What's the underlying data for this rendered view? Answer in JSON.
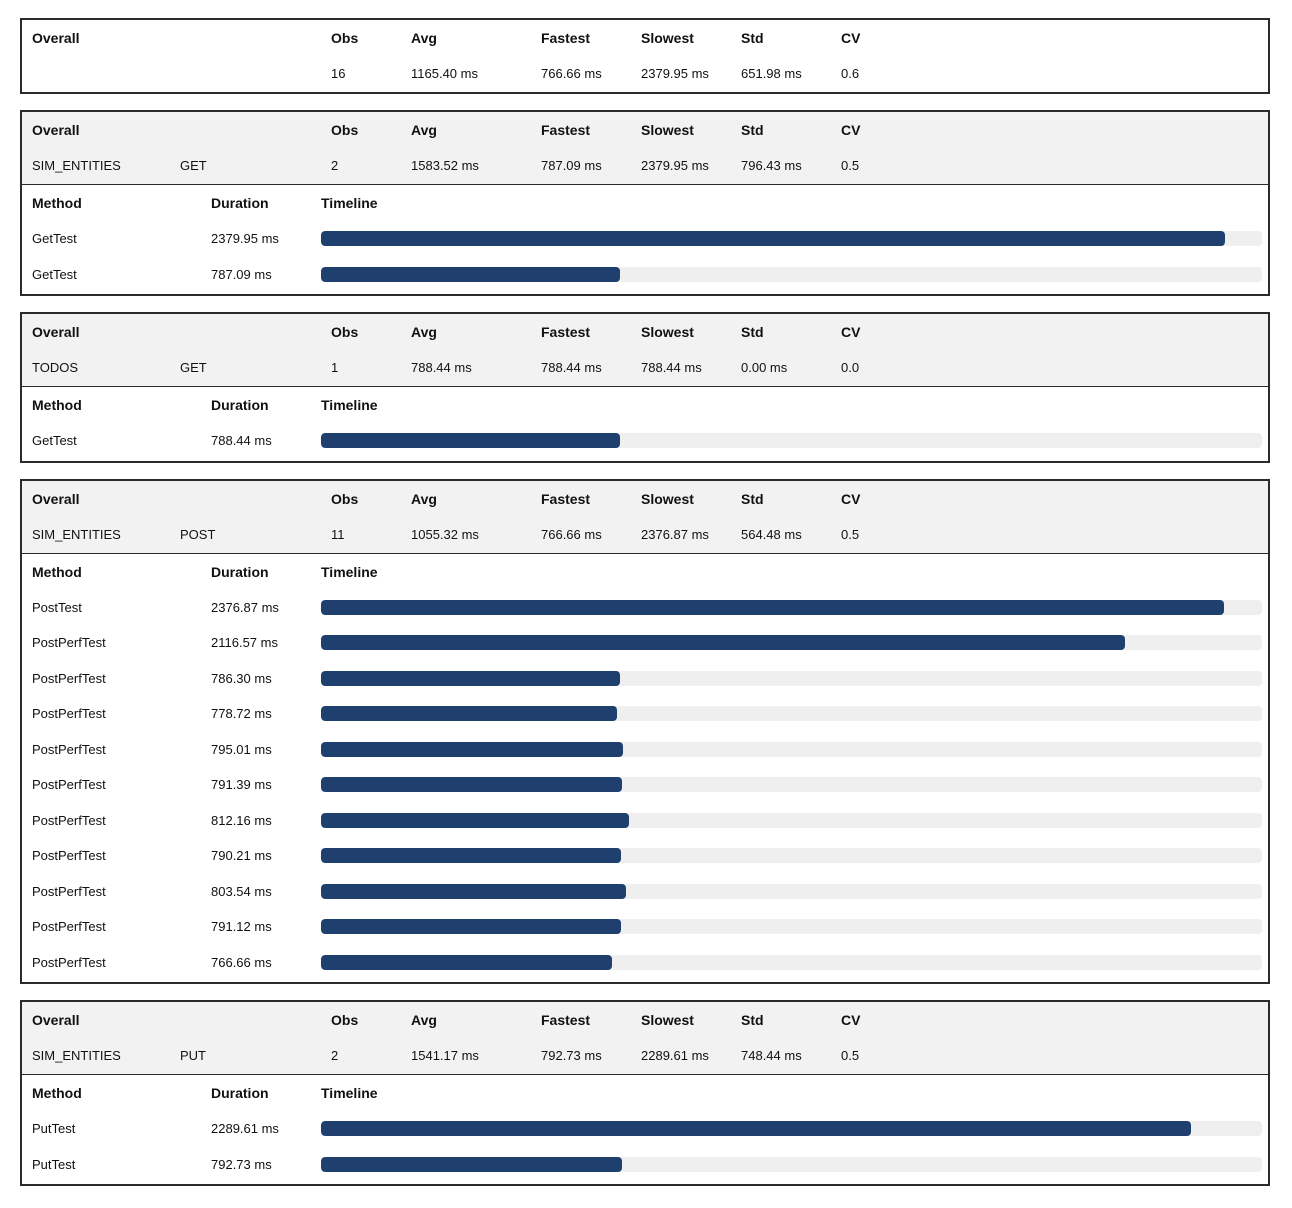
{
  "headers": {
    "overall": "Overall",
    "obs": "Obs",
    "avg": "Avg",
    "fastest": "Fastest",
    "slowest": "Slowest",
    "std": "Std",
    "cv": "CV",
    "method": "Method",
    "duration": "Duration",
    "timeline": "Timeline"
  },
  "colors": {
    "bar": "#1f3f6e",
    "track": "#efefef",
    "summary_bg": "#f2f2f2"
  },
  "panels": [
    {
      "group": "",
      "verb": "",
      "stats": {
        "obs": "16",
        "avg": "1165.40 ms",
        "fastest": "766.66 ms",
        "slowest": "2379.95 ms",
        "std": "651.98 ms",
        "cv": "0.6"
      },
      "runs": []
    },
    {
      "group": "SIM_ENTITIES",
      "verb": "GET",
      "stats": {
        "obs": "2",
        "avg": "1583.52 ms",
        "fastest": "787.09 ms",
        "slowest": "2379.95 ms",
        "std": "796.43 ms",
        "cv": "0.5"
      },
      "runs": [
        {
          "method": "GetTest",
          "duration": "2379.95 ms",
          "ms": 2379.95
        },
        {
          "method": "GetTest",
          "duration": "787.09 ms",
          "ms": 787.09
        }
      ]
    },
    {
      "group": "TODOS",
      "verb": "GET",
      "stats": {
        "obs": "1",
        "avg": "788.44 ms",
        "fastest": "788.44 ms",
        "slowest": "788.44 ms",
        "std": "0.00 ms",
        "cv": "0.0"
      },
      "runs": [
        {
          "method": "GetTest",
          "duration": "788.44 ms",
          "ms": 788.44
        }
      ]
    },
    {
      "group": "SIM_ENTITIES",
      "verb": "POST",
      "stats": {
        "obs": "11",
        "avg": "1055.32 ms",
        "fastest": "766.66 ms",
        "slowest": "2376.87 ms",
        "std": "564.48 ms",
        "cv": "0.5"
      },
      "runs": [
        {
          "method": "PostTest",
          "duration": "2376.87 ms",
          "ms": 2376.87
        },
        {
          "method": "PostPerfTest",
          "duration": "2116.57 ms",
          "ms": 2116.57
        },
        {
          "method": "PostPerfTest",
          "duration": "786.30 ms",
          "ms": 786.3
        },
        {
          "method": "PostPerfTest",
          "duration": "778.72 ms",
          "ms": 778.72
        },
        {
          "method": "PostPerfTest",
          "duration": "795.01 ms",
          "ms": 795.01
        },
        {
          "method": "PostPerfTest",
          "duration": "791.39 ms",
          "ms": 791.39
        },
        {
          "method": "PostPerfTest",
          "duration": "812.16 ms",
          "ms": 812.16
        },
        {
          "method": "PostPerfTest",
          "duration": "790.21 ms",
          "ms": 790.21
        },
        {
          "method": "PostPerfTest",
          "duration": "803.54 ms",
          "ms": 803.54
        },
        {
          "method": "PostPerfTest",
          "duration": "791.12 ms",
          "ms": 791.12
        },
        {
          "method": "PostPerfTest",
          "duration": "766.66 ms",
          "ms": 766.66
        }
      ]
    },
    {
      "group": "SIM_ENTITIES",
      "verb": "PUT",
      "stats": {
        "obs": "2",
        "avg": "1541.17 ms",
        "fastest": "792.73 ms",
        "slowest": "2289.61 ms",
        "std": "748.44 ms",
        "cv": "0.5"
      },
      "runs": [
        {
          "method": "PutTest",
          "duration": "2289.61 ms",
          "ms": 2289.61
        },
        {
          "method": "PutTest",
          "duration": "792.73 ms",
          "ms": 792.73
        }
      ]
    }
  ]
}
